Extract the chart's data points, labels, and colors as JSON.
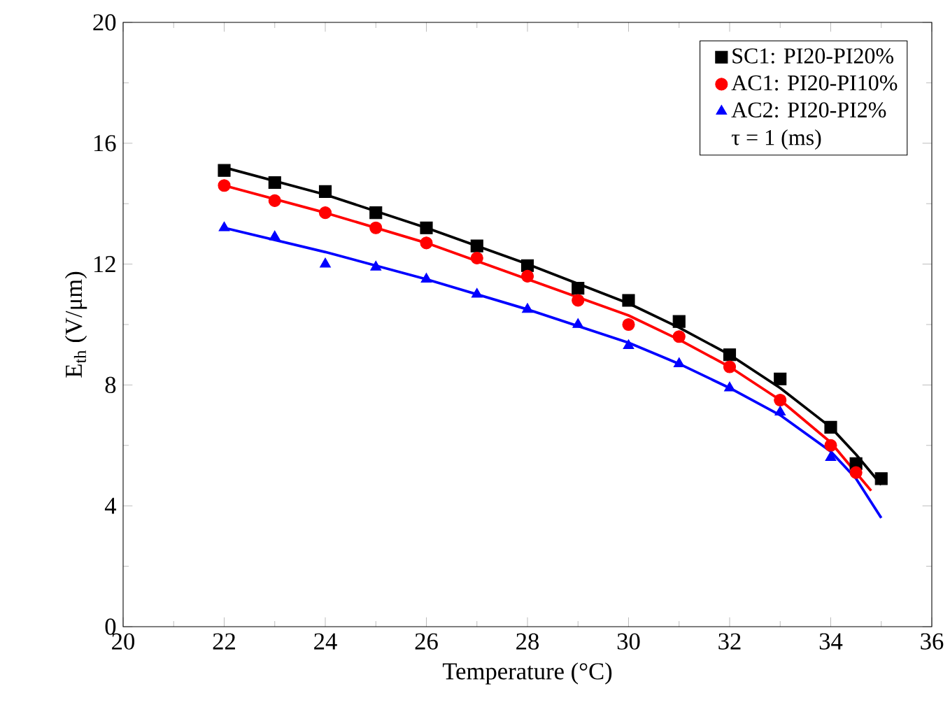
{
  "chart_data": {
    "type": "scatter",
    "xlabel": "Temperature (°C)",
    "ylabel": "E$_{th}$ (V/μm)",
    "xlim": [
      20,
      36
    ],
    "xticks": [
      20,
      22,
      24,
      26,
      28,
      30,
      32,
      34,
      36
    ],
    "ylim": [
      0,
      20
    ],
    "yticks": [
      0,
      4,
      8,
      12,
      16,
      20
    ],
    "grid": false,
    "legend": "top right",
    "annotations": [
      "τ = 1 (ms)"
    ],
    "series": [
      {
        "name": "SC1: PI20-PI20%",
        "color": "#000000",
        "marker": "square",
        "x": [
          22,
          23,
          24,
          25,
          26,
          27,
          28,
          29,
          30,
          31,
          32,
          33,
          34,
          34.5,
          35
        ],
        "values": [
          15.1,
          14.7,
          14.4,
          13.7,
          13.2,
          12.6,
          11.95,
          11.2,
          10.8,
          10.1,
          9.0,
          8.2,
          6.6,
          5.4,
          4.9
        ]
      },
      {
        "name": "AC1: PI20-PI10%",
        "color": "#ff0000",
        "marker": "circle",
        "x": [
          22,
          23,
          24,
          25,
          26,
          27,
          28,
          29,
          30,
          31,
          32,
          33,
          34,
          34.5
        ],
        "values": [
          14.6,
          14.1,
          13.7,
          13.2,
          12.7,
          12.2,
          11.6,
          10.8,
          10.0,
          9.6,
          8.6,
          7.5,
          6.0,
          5.1
        ]
      },
      {
        "name": "AC2: PI20-PI2%",
        "color": "#0000ff",
        "marker": "triangle",
        "x": [
          22,
          23,
          24,
          25,
          26,
          27,
          28,
          29,
          30,
          31,
          32,
          33,
          34
        ],
        "values": [
          13.2,
          12.9,
          12.0,
          11.9,
          11.5,
          11.0,
          10.5,
          10.0,
          9.3,
          8.7,
          7.9,
          7.1,
          5.6
        ]
      },
      {
        "type": "line",
        "color": "#000000",
        "marker": "none",
        "x": [
          22,
          24,
          26,
          28,
          30,
          31,
          32,
          33,
          34,
          34.5,
          35
        ],
        "values": [
          15.2,
          14.3,
          13.2,
          12.0,
          10.7,
          9.9,
          9.0,
          7.9,
          6.6,
          5.7,
          4.7
        ]
      },
      {
        "type": "line",
        "color": "#ff0000",
        "marker": "none",
        "x": [
          22,
          24,
          26,
          28,
          30,
          31,
          32,
          33,
          34,
          34.5,
          34.8
        ],
        "values": [
          14.6,
          13.7,
          12.7,
          11.5,
          10.3,
          9.5,
          8.6,
          7.5,
          6.1,
          5.1,
          4.5
        ]
      },
      {
        "type": "line",
        "color": "#0000ff",
        "marker": "none",
        "x": [
          22,
          24,
          26,
          28,
          30,
          31,
          32,
          33,
          34,
          34.5,
          35
        ],
        "values": [
          13.2,
          12.4,
          11.5,
          10.5,
          9.4,
          8.7,
          7.9,
          7.0,
          5.8,
          4.9,
          3.6
        ]
      }
    ]
  }
}
